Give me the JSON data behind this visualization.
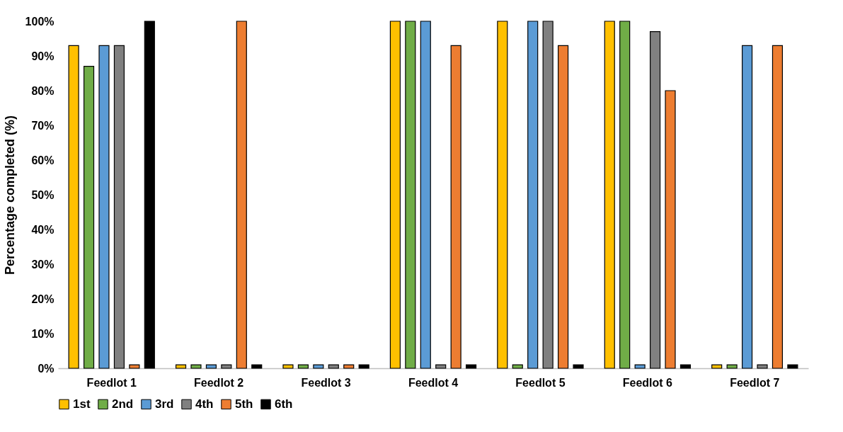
{
  "chart_data": {
    "type": "bar",
    "ylabel": "Percentage completed (%)",
    "categories": [
      "Feedlot 1",
      "Feedlot 2",
      "Feedlot 3",
      "Feedlot 4",
      "Feedlot 5",
      "Feedlot 6",
      "Feedlot 7"
    ],
    "series": [
      {
        "name": "1st",
        "color": "#ffc000",
        "values": [
          93,
          1,
          1,
          100,
          100,
          100,
          1
        ]
      },
      {
        "name": "2nd",
        "color": "#70ad47",
        "values": [
          87,
          1,
          1,
          100,
          1,
          100,
          1
        ]
      },
      {
        "name": "3rd",
        "color": "#5b9bd5",
        "values": [
          93,
          1,
          1,
          100,
          100,
          1,
          93
        ]
      },
      {
        "name": "4th",
        "color": "#808080",
        "values": [
          93,
          1,
          1,
          1,
          100,
          97,
          1
        ]
      },
      {
        "name": "5th",
        "color": "#ed7d31",
        "values": [
          1,
          100,
          1,
          93,
          93,
          80,
          93
        ]
      },
      {
        "name": "6th",
        "color": "#000000",
        "values": [
          100,
          1,
          1,
          1,
          1,
          1,
          1
        ]
      }
    ],
    "ylim": [
      0,
      100
    ],
    "yticks": [
      {
        "value": 0,
        "label": "0%"
      },
      {
        "value": 10,
        "label": "10%"
      },
      {
        "value": 20,
        "label": "20%"
      },
      {
        "value": 30,
        "label": "30%"
      },
      {
        "value": 40,
        "label": "40%"
      },
      {
        "value": 50,
        "label": "50%"
      },
      {
        "value": 60,
        "label": "60%"
      },
      {
        "value": 70,
        "label": "70%"
      },
      {
        "value": 80,
        "label": "80%"
      },
      {
        "value": 90,
        "label": "90%"
      },
      {
        "value": 100,
        "label": "100%"
      }
    ],
    "grid": false,
    "legend": "bottom"
  }
}
